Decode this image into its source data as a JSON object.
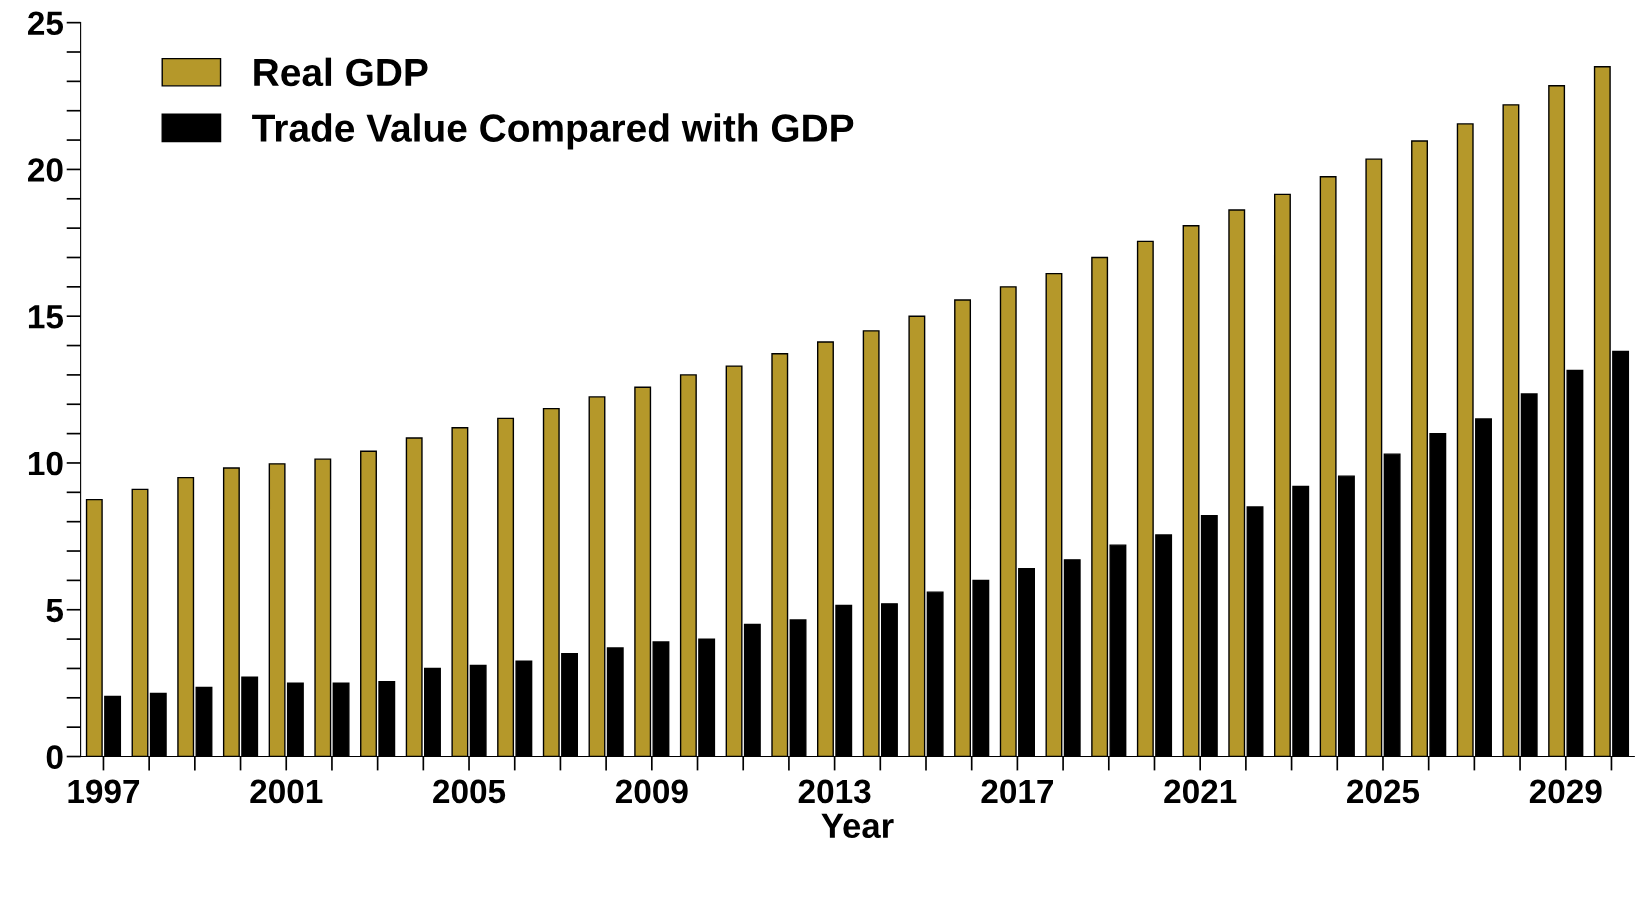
{
  "chart_data": {
    "type": "bar",
    "xlabel": "Year",
    "x": [
      1997,
      1998,
      1999,
      2000,
      2001,
      2002,
      2003,
      2004,
      2005,
      2006,
      2007,
      2008,
      2009,
      2010,
      2011,
      2012,
      2013,
      2014,
      2015,
      2016,
      2017,
      2018,
      2019,
      2020,
      2021,
      2022,
      2023,
      2024,
      2025,
      2026,
      2027,
      2028,
      2029,
      2030
    ],
    "series": [
      {
        "name": "Real GDP",
        "color": "#b5982a",
        "values": [
          8.75,
          9.1,
          9.5,
          9.83,
          9.97,
          10.13,
          10.4,
          10.85,
          11.2,
          11.52,
          11.85,
          12.25,
          12.58,
          13.0,
          13.3,
          13.72,
          14.12,
          14.5,
          15.0,
          15.55,
          16.0,
          16.45,
          17.0,
          17.55,
          18.08,
          18.62,
          19.15,
          19.75,
          20.35,
          20.97,
          21.55,
          22.2,
          22.85,
          23.5
        ]
      },
      {
        "name": "Trade Value Compared with GDP",
        "color": "#000000",
        "values": [
          2.05,
          2.15,
          2.35,
          2.7,
          2.5,
          2.5,
          2.55,
          3.0,
          3.1,
          3.25,
          3.5,
          3.7,
          3.9,
          4.0,
          4.5,
          4.65,
          5.15,
          5.2,
          5.6,
          6.0,
          6.4,
          6.7,
          7.2,
          7.55,
          8.2,
          8.5,
          9.2,
          9.55,
          10.3,
          11.0,
          11.5,
          12.35,
          13.15,
          13.8
        ]
      }
    ],
    "xlim": [
      1996.5,
      2030.5
    ],
    "xticks": [
      1997,
      {
        "value": 1998,
        "label": null
      },
      {
        "value": 1999,
        "label": null
      },
      {
        "value": 2000,
        "label": null
      },
      2001,
      {
        "value": 2002,
        "label": null
      },
      {
        "value": 2003,
        "label": null
      },
      {
        "value": 2004,
        "label": null
      },
      2005,
      {
        "value": 2006,
        "label": null
      },
      {
        "value": 2007,
        "label": null
      },
      {
        "value": 2008,
        "label": null
      },
      2009,
      {
        "value": 2010,
        "label": null
      },
      {
        "value": 2011,
        "label": null
      },
      {
        "value": 2012,
        "label": null
      },
      2013,
      {
        "value": 2014,
        "label": null
      },
      {
        "value": 2015,
        "label": null
      },
      {
        "value": 2016,
        "label": null
      },
      2017,
      {
        "value": 2018,
        "label": null
      },
      {
        "value": 2019,
        "label": null
      },
      {
        "value": 2020,
        "label": null
      },
      2021,
      {
        "value": 2022,
        "label": null
      },
      {
        "value": 2023,
        "label": null
      },
      {
        "value": 2024,
        "label": null
      },
      2025,
      {
        "value": 2026,
        "label": null
      },
      {
        "value": 2027,
        "label": null
      },
      {
        "value": 2028,
        "label": null
      },
      2029,
      {
        "value": 2030,
        "label": null
      }
    ],
    "ylim": [
      0,
      25
    ],
    "yticks": [
      0,
      {
        "value": 1,
        "label": null
      },
      {
        "value": 2,
        "label": null
      },
      {
        "value": 3,
        "label": null
      },
      {
        "value": 4,
        "label": null
      },
      5,
      {
        "value": 6,
        "label": null
      },
      {
        "value": 7,
        "label": null
      },
      {
        "value": 8,
        "label": null
      },
      {
        "value": 9,
        "label": null
      },
      10,
      {
        "value": 11,
        "label": null
      },
      {
        "value": 12,
        "label": null
      },
      {
        "value": 13,
        "label": null
      },
      {
        "value": 14,
        "label": null
      },
      15,
      {
        "value": 16,
        "label": null
      },
      {
        "value": 17,
        "label": null
      },
      {
        "value": 18,
        "label": null
      },
      {
        "value": 19,
        "label": null
      },
      20,
      {
        "value": 21,
        "label": null
      },
      {
        "value": 22,
        "label": null
      },
      {
        "value": 23,
        "label": null
      },
      {
        "value": 24,
        "label": null
      },
      25
    ],
    "grid": false,
    "legend": "top left"
  }
}
